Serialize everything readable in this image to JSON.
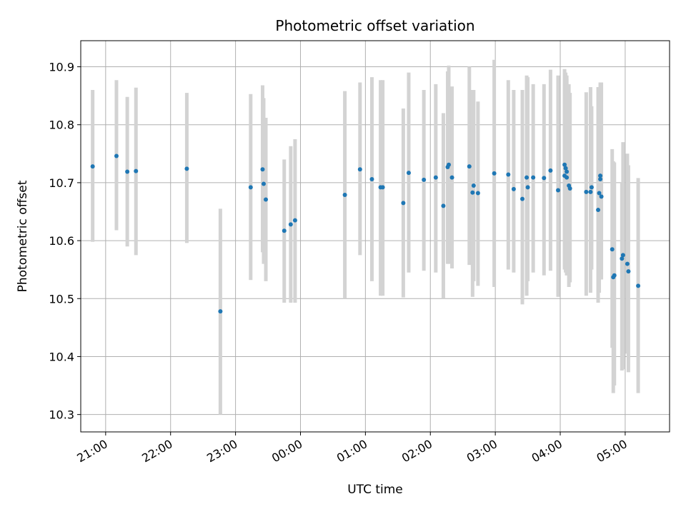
{
  "chart_data": {
    "type": "scatter",
    "title": "Photometric offset variation",
    "xlabel": "UTC time",
    "ylabel": "Photometric offset",
    "x_axis_kind": "time",
    "x_tick_labels": [
      "21:00",
      "22:00",
      "23:00",
      "00:00",
      "01:00",
      "02:00",
      "03:00",
      "04:00",
      "05:00"
    ],
    "y_ticks": [
      10.3,
      10.4,
      10.5,
      10.6,
      10.7,
      10.8,
      10.9
    ],
    "y_tick_labels": [
      "10.3",
      "10.4",
      "10.5",
      "10.6",
      "10.7",
      "10.8",
      "10.9"
    ],
    "ylim": [
      10.27,
      10.945
    ],
    "xlim": [
      "20:37",
      "05:41"
    ],
    "grid": true,
    "legend": "none",
    "colors": {
      "points": "#1f77b4",
      "errorbars": "#d3d3d3",
      "grid": "#b0b0b0"
    },
    "series": [
      {
        "x": [
          "20:48",
          "21:10",
          "21:20",
          "21:28",
          "22:15",
          "22:46",
          "23:14",
          "23:25",
          "23:26",
          "23:28",
          "23:45",
          "23:51",
          "23:55",
          "00:41",
          "00:55",
          "01:06",
          "01:14",
          "01:16",
          "01:35",
          "01:40",
          "01:54",
          "02:05",
          "02:12",
          "02:16",
          "02:17",
          "02:20",
          "02:36",
          "02:39",
          "02:40",
          "02:44",
          "02:59",
          "03:12",
          "03:17",
          "03:25",
          "03:29",
          "03:30",
          "03:35",
          "03:45",
          "03:51",
          "03:58",
          "04:04",
          "04:04",
          "04:05",
          "04:06",
          "04:06",
          "04:08",
          "04:09",
          "04:24",
          "04:28",
          "04:29",
          "04:35",
          "04:36",
          "04:37",
          "04:37",
          "04:38",
          "04:48",
          "04:49",
          "04:50",
          "04:57",
          "04:58",
          "05:02",
          "05:03",
          "05:12"
        ],
        "y": [
          10.728,
          10.746,
          10.719,
          10.72,
          10.724,
          10.478,
          10.692,
          10.723,
          10.698,
          10.671,
          10.617,
          10.628,
          10.635,
          10.679,
          10.723,
          10.706,
          10.692,
          10.692,
          10.665,
          10.717,
          10.705,
          10.709,
          10.66,
          10.727,
          10.731,
          10.709,
          10.728,
          10.683,
          10.695,
          10.682,
          10.716,
          10.714,
          10.689,
          10.672,
          10.709,
          10.692,
          10.709,
          10.708,
          10.721,
          10.687,
          10.731,
          10.712,
          10.725,
          10.709,
          10.719,
          10.695,
          10.69,
          10.684,
          10.684,
          10.692,
          10.653,
          10.682,
          10.706,
          10.712,
          10.676,
          10.585,
          10.537,
          10.54,
          10.569,
          10.575,
          10.56,
          10.547,
          10.522
        ],
        "err_low": [
          10.598,
          10.618,
          10.59,
          10.575,
          10.596,
          10.3,
          10.532,
          10.58,
          10.56,
          10.53,
          10.493,
          10.493,
          10.493,
          10.5,
          10.575,
          10.53,
          10.505,
          10.505,
          10.502,
          10.545,
          10.548,
          10.545,
          10.5,
          10.56,
          10.56,
          10.552,
          10.558,
          10.503,
          10.53,
          10.522,
          10.52,
          10.55,
          10.545,
          10.49,
          10.505,
          10.53,
          10.545,
          10.54,
          10.548,
          10.503,
          10.55,
          10.555,
          10.545,
          10.54,
          10.54,
          10.52,
          10.528,
          10.505,
          10.51,
          10.55,
          10.493,
          10.51,
          10.533,
          10.533,
          10.533,
          10.415,
          10.337,
          10.35,
          10.376,
          10.378,
          10.405,
          10.373,
          10.337
        ],
        "err_high": [
          10.86,
          10.877,
          10.848,
          10.864,
          10.855,
          10.655,
          10.853,
          10.868,
          10.846,
          10.812,
          10.74,
          10.763,
          10.775,
          10.858,
          10.873,
          10.882,
          10.877,
          10.877,
          10.828,
          10.89,
          10.86,
          10.87,
          10.82,
          10.892,
          10.902,
          10.866,
          10.9,
          10.86,
          10.86,
          10.84,
          10.912,
          10.877,
          10.86,
          10.86,
          10.885,
          10.882,
          10.87,
          10.87,
          10.895,
          10.885,
          10.87,
          10.896,
          10.89,
          10.885,
          10.88,
          10.87,
          10.855,
          10.856,
          10.865,
          10.832,
          10.865,
          10.865,
          10.87,
          10.873,
          10.873,
          10.758,
          10.737,
          10.735,
          10.7,
          10.77,
          10.75,
          10.73,
          10.708
        ]
      }
    ]
  }
}
